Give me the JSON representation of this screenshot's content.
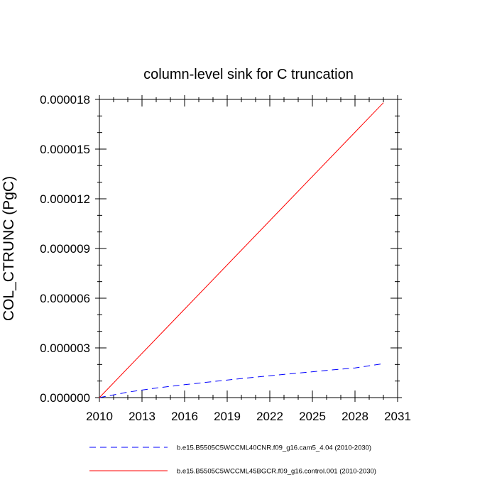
{
  "chart_data": {
    "type": "line",
    "title": "column-level sink for C truncation",
    "xlabel": "",
    "ylabel": "COL_CTRUNC  (PgC)",
    "xlim": [
      2010,
      2031
    ],
    "ylim": [
      0,
      1.8e-05
    ],
    "x_ticks": [
      2010,
      2013,
      2016,
      2019,
      2022,
      2025,
      2028,
      2031
    ],
    "x_tick_labels": [
      "2010",
      "2013",
      "2016",
      "2019",
      "2022",
      "2025",
      "2028",
      "2031"
    ],
    "y_ticks": [
      0,
      3e-06,
      6e-06,
      9e-06,
      1.2e-05,
      1.5e-05,
      1.8e-05
    ],
    "y_tick_labels": [
      "0.000000",
      "0.000003",
      "0.000006",
      "0.000009",
      "0.000012",
      "0.000015",
      "0.000018"
    ],
    "grid": false,
    "legend_position": "bottom",
    "series": [
      {
        "name": "b.e15.B5505C5WCCML40CNR.f09_g16.cam5_4.04 (2010-2030)",
        "color": "#0000ff",
        "dash": "dashed",
        "x": [
          2010,
          2012,
          2014,
          2016,
          2018,
          2020,
          2022,
          2024,
          2026,
          2028,
          2030
        ],
        "y": [
          0,
          3.3e-07,
          5.8e-07,
          7.8e-07,
          9.7e-07,
          1.15e-06,
          1.32e-06,
          1.48e-06,
          1.64e-06,
          1.79e-06,
          2.05e-06
        ]
      },
      {
        "name": "b.e15.B5505C5WCCML45BGCR.f09_g16.control.001 (2010-2030)",
        "color": "#ff0000",
        "dash": "solid",
        "x": [
          2010,
          2030
        ],
        "y": [
          0,
          1.78e-05
        ]
      }
    ]
  }
}
